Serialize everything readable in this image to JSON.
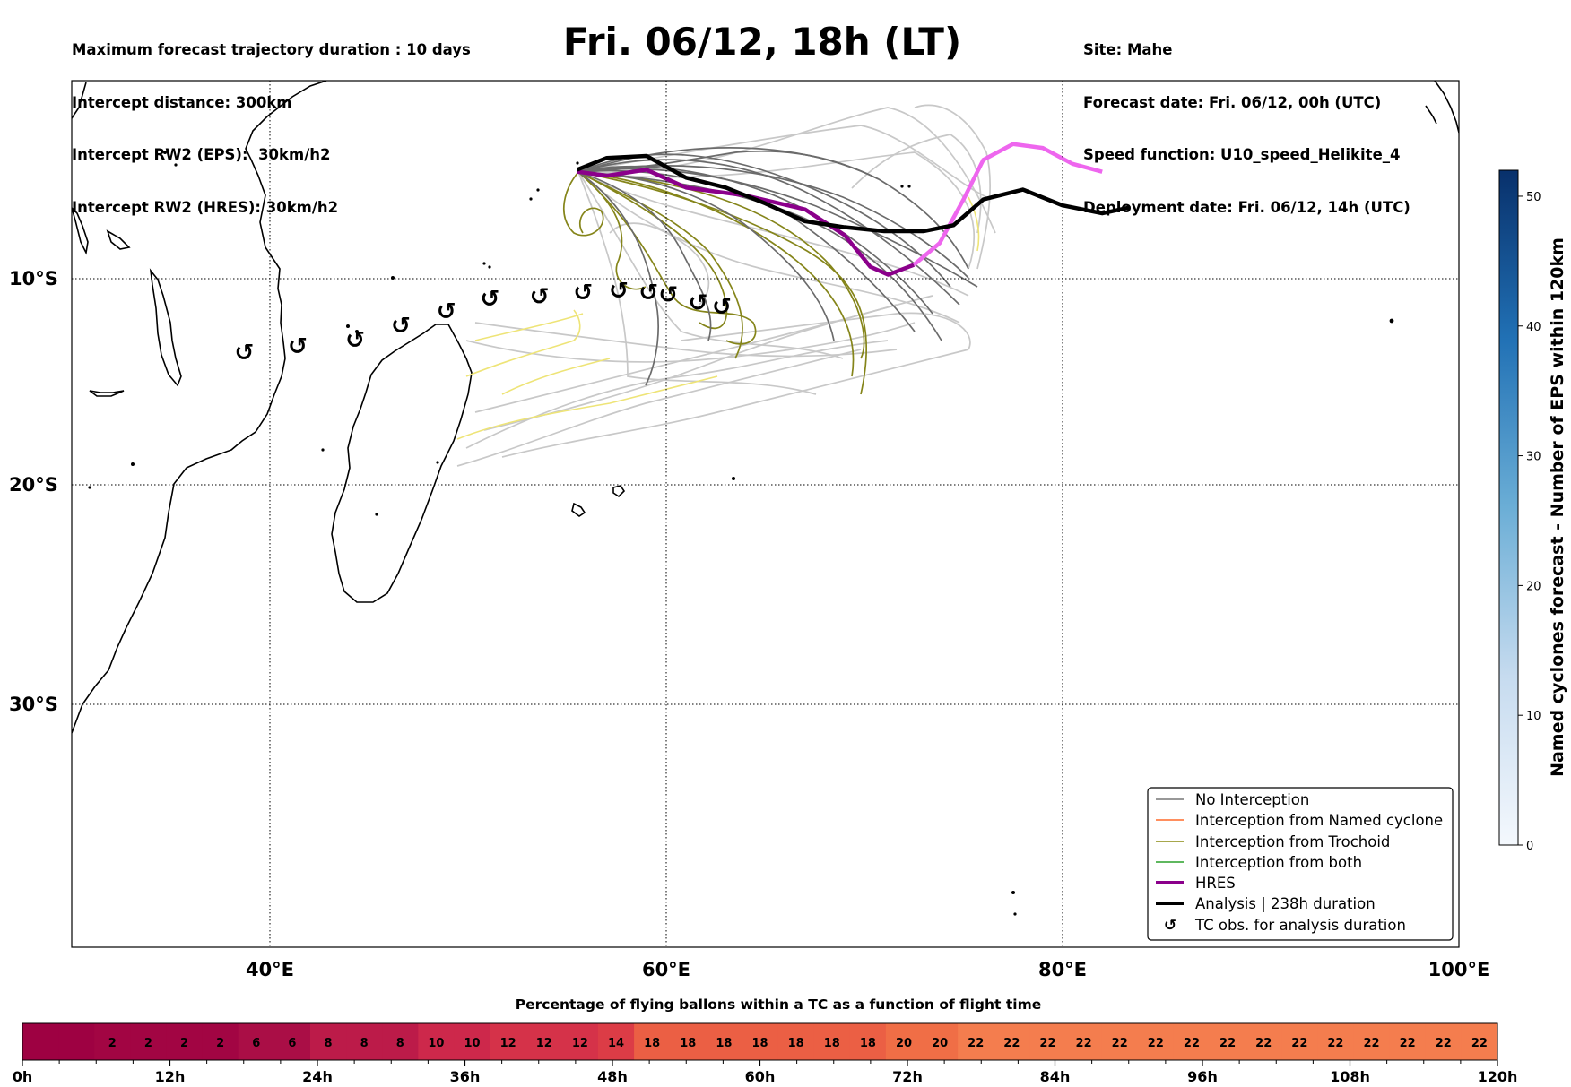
{
  "header": {
    "left_lines": [
      "Maximum forecast trajectory duration : 10 days",
      "Intercept distance: 300km",
      "Intercept RW2 (EPS):  30km/h2",
      "Intercept RW2 (HRES): 30km/h2"
    ],
    "title": "Fri. 06/12, 18h (LT)",
    "right_lines": [
      "Site: Mahe",
      "Forecast date: Fri. 06/12, 00h (UTC)",
      "Speed function: U10_speed_Helikite_4",
      "Deployment date: Fri. 06/12, 14h (UTC)"
    ]
  },
  "chart_data": {
    "type": "map",
    "region": {
      "lon_range": [
        30,
        100
      ],
      "lat_range": [
        -42,
        0
      ]
    },
    "lat_ticks": [
      {
        "value": -10,
        "label": "10°S"
      },
      {
        "value": -20,
        "label": "20°S"
      },
      {
        "value": -30,
        "label": "30°S"
      }
    ],
    "lon_ticks": [
      {
        "value": 40,
        "label": "40°E"
      },
      {
        "value": 60,
        "label": "60°E"
      },
      {
        "value": 80,
        "label": "80°E"
      },
      {
        "value": 100,
        "label": "100°E"
      }
    ],
    "legend": {
      "position": "lower right",
      "entries": [
        {
          "label": "No Interception",
          "color": "#777777",
          "style": "thin"
        },
        {
          "label": "Interception from Named cyclone",
          "color": "#ff6a2a",
          "style": "thin"
        },
        {
          "label": "Interception from Trochoid",
          "color": "#8a8a10",
          "style": "thin"
        },
        {
          "label": "Interception from both",
          "color": "#2aa02a",
          "style": "thin"
        },
        {
          "label": "HRES",
          "color": "#8b008b",
          "style": "thick"
        },
        {
          "label": "Analysis | 238h duration",
          "color": "#000000",
          "style": "thick"
        },
        {
          "label": "TC obs. for analysis duration",
          "color": "#000000",
          "style": "symbol"
        }
      ]
    },
    "hres_track": [
      [
        55.5,
        -4.6
      ],
      [
        57,
        -4.8
      ],
      [
        59,
        -4.5
      ],
      [
        61,
        -5.4
      ],
      [
        64,
        -5.8
      ],
      [
        67,
        -6.5
      ],
      [
        69,
        -7.8
      ],
      [
        70.3,
        -9.4
      ],
      [
        71.2,
        -9.8
      ],
      [
        72.5,
        -9.3
      ],
      [
        73.8,
        -8.2
      ],
      [
        75,
        -6
      ],
      [
        76,
        -4
      ],
      [
        77.5,
        -3.2
      ],
      [
        79,
        -3.4
      ],
      [
        80.5,
        -4.2
      ],
      [
        82,
        -4.6
      ]
    ],
    "hres_track_colors": [
      "#8b008b",
      "#ee66ee"
    ],
    "analysis_track": [
      [
        55.5,
        -4.5
      ],
      [
        57,
        -3.9
      ],
      [
        59,
        -3.8
      ],
      [
        61,
        -4.9
      ],
      [
        63,
        -5.4
      ],
      [
        65,
        -6.2
      ],
      [
        67,
        -7.1
      ],
      [
        69,
        -7.4
      ],
      [
        71,
        -7.6
      ],
      [
        73,
        -7.6
      ],
      [
        74.5,
        -7.3
      ],
      [
        76,
        -6
      ],
      [
        78,
        -5.5
      ],
      [
        80,
        -6.3
      ],
      [
        82,
        -6.7
      ],
      [
        83.4,
        -6.4
      ]
    ],
    "tc_obs": [
      [
        38.7,
        -13.6
      ],
      [
        41.4,
        -13.3
      ],
      [
        44.3,
        -13
      ],
      [
        46.6,
        -12.3
      ],
      [
        48.9,
        -11.6
      ],
      [
        51.1,
        -11
      ],
      [
        53.6,
        -10.9
      ],
      [
        55.8,
        -10.7
      ],
      [
        57.6,
        -10.6
      ],
      [
        59.1,
        -10.7
      ],
      [
        60.1,
        -10.8
      ],
      [
        61.6,
        -11.2
      ],
      [
        62.8,
        -11.4
      ]
    ],
    "colorbar": {
      "title": "Named cyclones forecast - Number of EPS within 120km",
      "range": [
        0,
        52
      ],
      "ticks": [
        0,
        10,
        20,
        30,
        40,
        50
      ]
    },
    "time_bar": {
      "title": "Percentage of flying ballons within a TC as a function of flight time",
      "values": [
        "",
        "",
        "2",
        "2",
        "2",
        "2",
        "6",
        "6",
        "8",
        "8",
        "8",
        "10",
        "10",
        "12",
        "12",
        "12",
        "14",
        "18",
        "18",
        "18",
        "18",
        "18",
        "18",
        "18",
        "20",
        "20",
        "22",
        "22",
        "22",
        "22",
        "22",
        "22",
        "22",
        "22",
        "22",
        "22",
        "22",
        "22",
        "22",
        "22",
        "22"
      ],
      "tick_labels": [
        "0h",
        "12h",
        "24h",
        "36h",
        "48h",
        "60h",
        "72h",
        "84h",
        "96h",
        "108h",
        "120h"
      ]
    }
  }
}
